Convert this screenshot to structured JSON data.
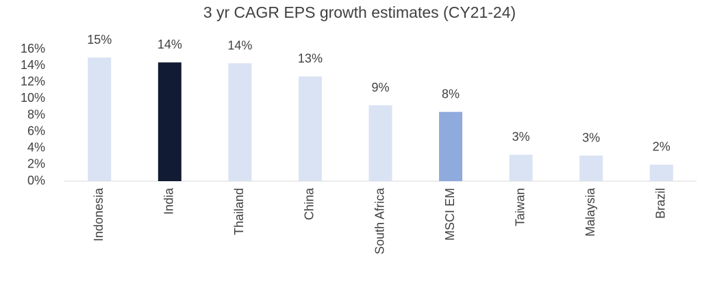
{
  "chart_data": {
    "type": "bar",
    "title": "3 yr CAGR EPS growth estimates (CY21-24)",
    "categories": [
      "Indonesia",
      "India",
      "Thailand",
      "China",
      "South Africa",
      "MSCI EM",
      "Taiwan",
      "Malaysia",
      "Brazil"
    ],
    "values": [
      15.0,
      14.4,
      14.3,
      12.7,
      9.2,
      8.4,
      3.2,
      3.1,
      2.0
    ],
    "value_labels": [
      "15%",
      "14%",
      "14%",
      "13%",
      "9%",
      "8%",
      "3%",
      "3%",
      "2%"
    ],
    "colors": [
      "#dae3f3",
      "#111b33",
      "#dae3f3",
      "#dae3f3",
      "#dae3f3",
      "#8faadc",
      "#dae3f3",
      "#dae3f3",
      "#dae3f3"
    ],
    "ylim": [
      0,
      16
    ],
    "yticks": [
      {
        "value": 0,
        "label": "0%"
      },
      {
        "value": 2,
        "label": "2%"
      },
      {
        "value": 4,
        "label": "4%"
      },
      {
        "value": 6,
        "label": "6%"
      },
      {
        "value": 8,
        "label": "8%"
      },
      {
        "value": 10,
        "label": "10%"
      },
      {
        "value": 12,
        "label": "12%"
      },
      {
        "value": 14,
        "label": "14%"
      },
      {
        "value": 16,
        "label": "16%"
      }
    ],
    "grid": false
  }
}
